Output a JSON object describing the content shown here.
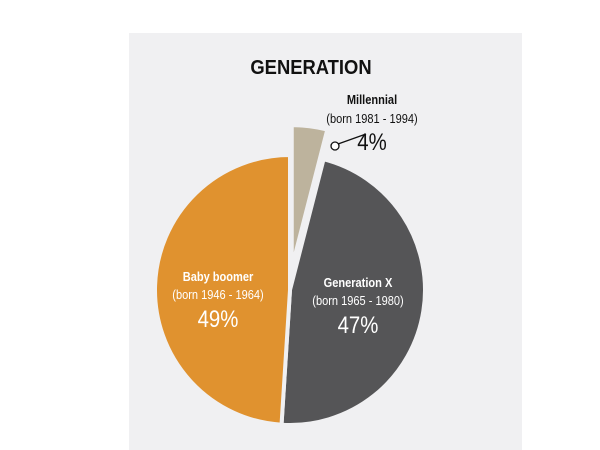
{
  "chart_data": {
    "type": "pie",
    "title": "GENERATION",
    "slices": [
      {
        "name": "Millennial",
        "sub": "(born 1981 - 1994)",
        "value": 4,
        "label": "4%",
        "color": "#bdb39d",
        "exploded": true
      },
      {
        "name": "Generation X",
        "sub": "(born 1965 - 1980)",
        "value": 47,
        "label": "47%",
        "color": "#555557",
        "exploded": false
      },
      {
        "name": "Baby boomer",
        "sub": "(born 1946 - 1964)",
        "value": 49,
        "label": "49%",
        "color": "#e0922f",
        "exploded": false
      }
    ],
    "background": "#f0f0f2"
  }
}
